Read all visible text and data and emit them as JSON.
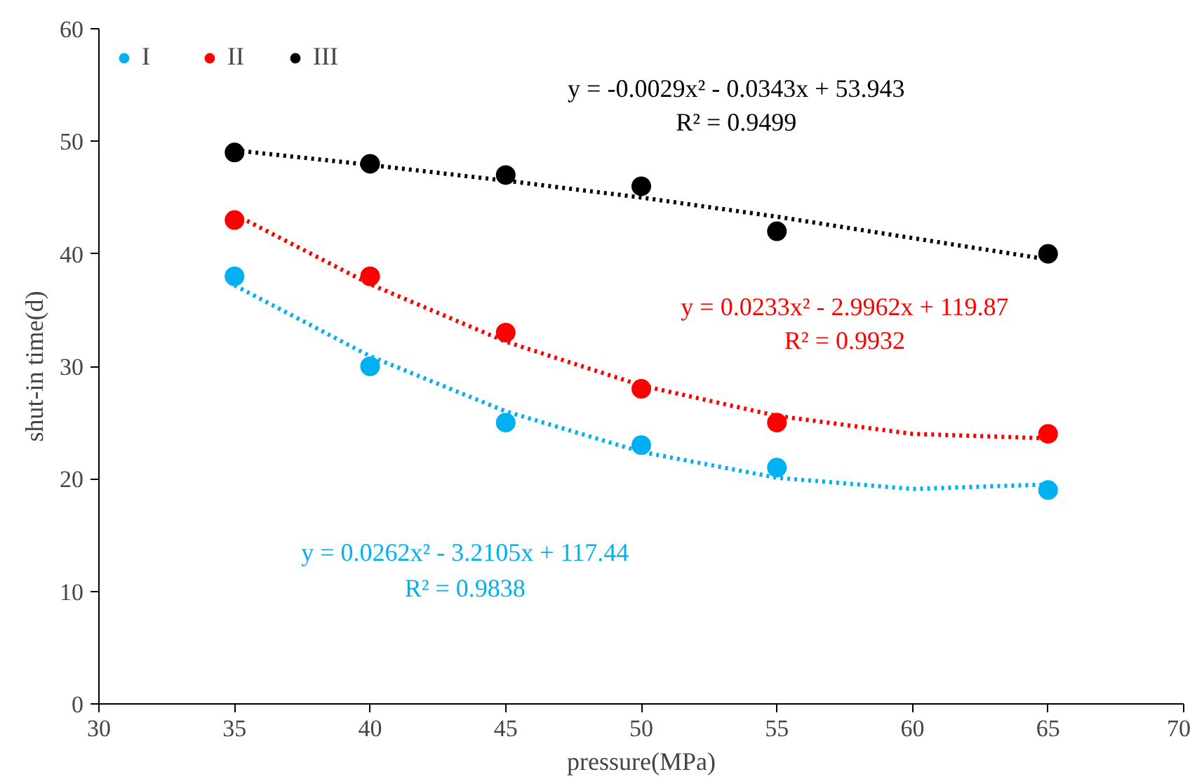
{
  "chart_data": {
    "type": "scatter",
    "xlabel": "pressure(MPa)",
    "ylabel": "shut-in time(d)",
    "xlim": [
      30,
      70
    ],
    "ylim": [
      0,
      60
    ],
    "xticks": [
      30,
      35,
      40,
      45,
      50,
      55,
      60,
      65,
      70
    ],
    "yticks": [
      0,
      10,
      20,
      30,
      40,
      50,
      60
    ],
    "grid": false,
    "legend": "top left",
    "marker": "circle",
    "series": [
      {
        "name": "I",
        "color": "#00b0f0",
        "x": [
          35,
          40,
          45,
          50,
          55,
          65
        ],
        "values": [
          38,
          30,
          25,
          23,
          21,
          19
        ]
      },
      {
        "name": "II",
        "color": "#ff0000",
        "x": [
          35,
          40,
          45,
          50,
          55,
          65
        ],
        "values": [
          43,
          38,
          33,
          28,
          25,
          24
        ]
      },
      {
        "name": "III",
        "color": "#000000",
        "x": [
          35,
          40,
          45,
          50,
          55,
          65
        ],
        "values": [
          49,
          48,
          47,
          46,
          42,
          40
        ]
      },
      {
        "type": "line",
        "marker": "none",
        "line_style": "dotted",
        "color": "#00b0f0",
        "x": [
          35,
          40,
          45,
          50,
          55,
          60,
          65
        ],
        "values": [
          37.2,
          30.9,
          26.0,
          22.4,
          20.1,
          19.1,
          19.5
        ]
      },
      {
        "type": "line",
        "marker": "none",
        "line_style": "dotted",
        "color": "#ff0000",
        "x": [
          35,
          40,
          45,
          50,
          55,
          60,
          65
        ],
        "values": [
          43.5,
          37.3,
          32.2,
          28.3,
          25.6,
          24.0,
          23.6
        ]
      },
      {
        "type": "line",
        "marker": "none",
        "line_style": "dotted",
        "color": "#000000",
        "x": [
          35,
          40,
          45,
          50,
          55,
          60,
          65
        ],
        "values": [
          49.2,
          47.9,
          46.5,
          45.0,
          43.3,
          41.4,
          39.5
        ]
      }
    ],
    "annotations": [
      "y = 0.0262x² - 3.2105x + 117.44",
      "R² = 0.9838",
      "y = 0.0233x² - 2.9962x + 119.87",
      "R² = 0.9932",
      "y = -0.0029x² - 0.0343x + 53.943",
      "R² = 0.9499"
    ]
  }
}
